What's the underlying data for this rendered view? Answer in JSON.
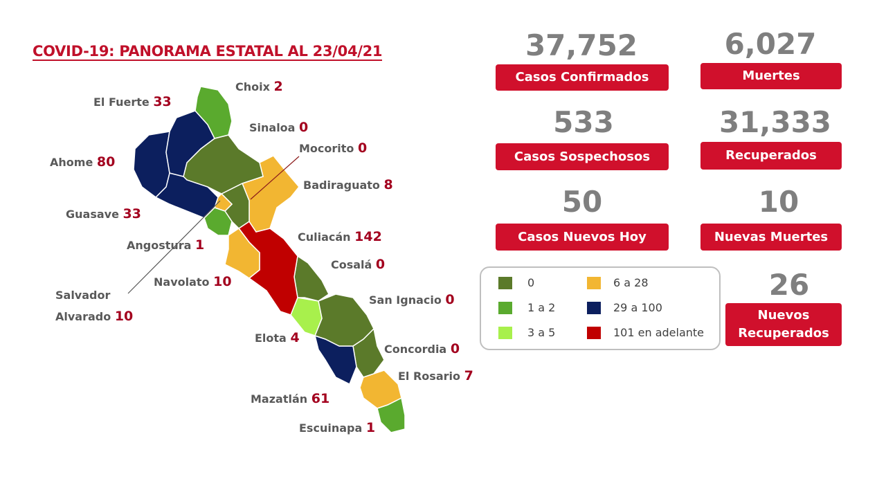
{
  "header": {
    "title": "COVID-19: PANORAMA ESTATAL AL 23/04/21"
  },
  "municipalities": [
    {
      "name": "Choix",
      "value": 2,
      "color": "#5aaa2e"
    },
    {
      "name": "El Fuerte",
      "value": 33,
      "color": "#0c1f5e"
    },
    {
      "name": "Ahome",
      "value": 80,
      "color": "#0c1f5e"
    },
    {
      "name": "Sinaloa",
      "value": 0,
      "color": "#5b7a2a"
    },
    {
      "name": "Guasave",
      "value": 33,
      "color": "#0c1f5e"
    },
    {
      "name": "Angostura",
      "value": 1,
      "color": "#5aaa2e"
    },
    {
      "name": "Salvador Alvarado",
      "value": 10,
      "color": "#f2b632"
    },
    {
      "name": "Mocorito",
      "value": 0,
      "color": "#5b7a2a"
    },
    {
      "name": "Badiraguato",
      "value": 8,
      "color": "#f2b632"
    },
    {
      "name": "Navolato",
      "value": 10,
      "color": "#f2b632"
    },
    {
      "name": "Culiacán",
      "value": 142,
      "color": "#c00000"
    },
    {
      "name": "Cosalá",
      "value": 0,
      "color": "#5b7a2a"
    },
    {
      "name": "Elota",
      "value": 4,
      "color": "#a8f04c"
    },
    {
      "name": "San Ignacio",
      "value": 0,
      "color": "#5b7a2a"
    },
    {
      "name": "Mazatlán",
      "value": 61,
      "color": "#0c1f5e"
    },
    {
      "name": "Concordia",
      "value": 0,
      "color": "#5b7a2a"
    },
    {
      "name": "El Rosario",
      "value": 7,
      "color": "#f2b632"
    },
    {
      "name": "Escuinapa",
      "value": 1,
      "color": "#5aaa2e"
    }
  ],
  "stats": [
    {
      "value": "37,752",
      "label": "Casos Confirmados"
    },
    {
      "value": "6,027",
      "label": "Muertes"
    },
    {
      "value": "533",
      "label": "Casos Sospechosos"
    },
    {
      "value": "31,333",
      "label": "Recuperados"
    },
    {
      "value": "50",
      "label": "Casos Nuevos Hoy"
    },
    {
      "value": "10",
      "label": "Nuevas Muertes"
    },
    {
      "value": "26",
      "label": "Nuevos Recuperados"
    }
  ],
  "legend": [
    {
      "label": "0",
      "color": "#5b7a2a"
    },
    {
      "label": "1 a 2",
      "color": "#5aaa2e"
    },
    {
      "label": "3 a 5",
      "color": "#a8f04c"
    },
    {
      "label": "6 a 28",
      "color": "#f2b632"
    },
    {
      "label": "29 a 100",
      "color": "#0c1f5e"
    },
    {
      "label": "101 en adelante",
      "color": "#c00000"
    }
  ]
}
